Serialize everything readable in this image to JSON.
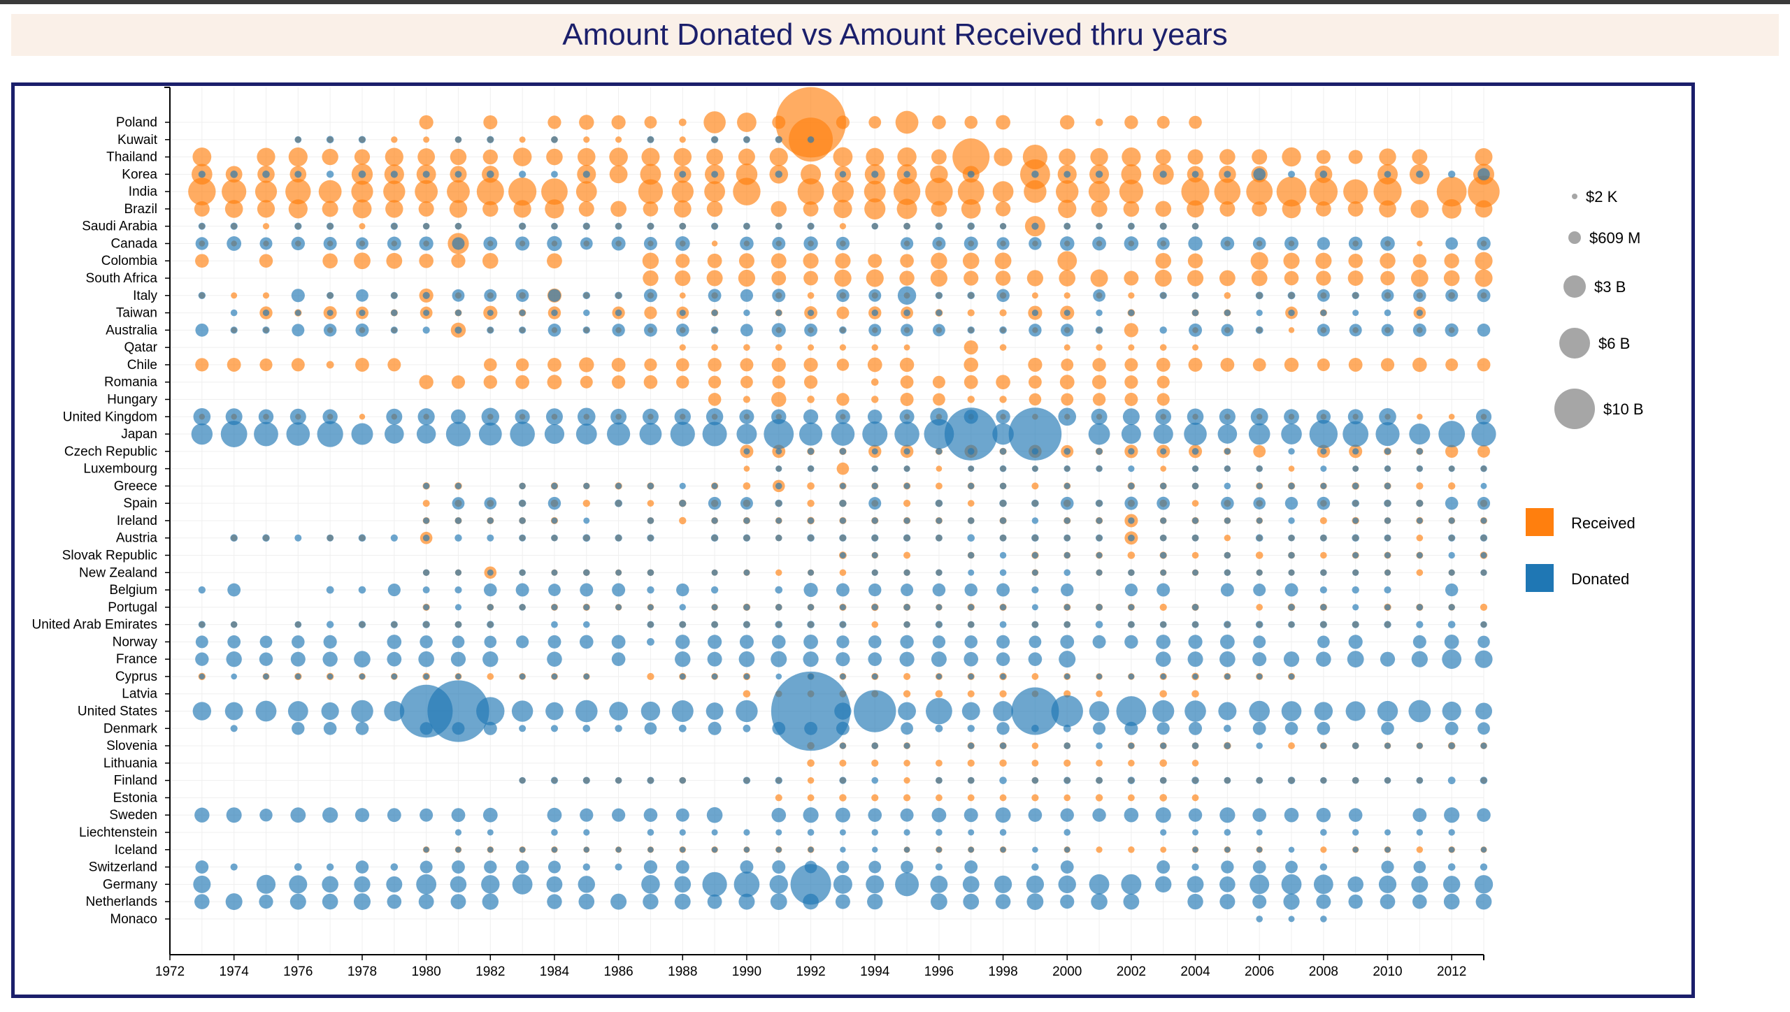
{
  "title": "Amount Donated vs Amount Received thru years",
  "chart_data": {
    "type": "scatter",
    "subtype": "bubble",
    "title": "Amount Donated vs Amount Received thru years",
    "xlabel": "",
    "ylabel": "",
    "xlim": [
      1972,
      2013
    ],
    "x_ticks": [
      1972,
      1974,
      1976,
      1978,
      1980,
      1982,
      1984,
      1986,
      1988,
      1990,
      1992,
      1994,
      1996,
      1998,
      2000,
      2002,
      2004,
      2006,
      2008,
      2010,
      2012
    ],
    "countries": [
      "Poland",
      "Kuwait",
      "Thailand",
      "Korea",
      "India",
      "Brazil",
      "Saudi Arabia",
      "Canada",
      "Colombia",
      "South Africa",
      "Italy",
      "Taiwan",
      "Australia",
      "Qatar",
      "Chile",
      "Romania",
      "Hungary",
      "United Kingdom",
      "Japan",
      "Czech Republic",
      "Luxembourg",
      "Greece",
      "Spain",
      "Ireland",
      "Austria",
      "Slovak Republic",
      "New Zealand",
      "Belgium",
      "Portugal",
      "United Arab Emirates",
      "Norway",
      "France",
      "Cyprus",
      "Latvia",
      "United States",
      "Denmark",
      "Slovenia",
      "Lithuania",
      "Finland",
      "Estonia",
      "Sweden",
      "Liechtenstein",
      "Iceland",
      "Switzerland",
      "Germany",
      "Netherlands",
      "Monaco"
    ],
    "size_legend": [
      {
        "label": "$2 K",
        "value_usd": 2000
      },
      {
        "label": "$609 M",
        "value_usd": 609000000
      },
      {
        "label": "$3 B",
        "value_usd": 3000000000
      },
      {
        "label": "$6 B",
        "value_usd": 6000000000
      },
      {
        "label": "$10 B",
        "value_usd": 10000000000
      }
    ],
    "legend_position": "right",
    "series": [
      {
        "name": "Received",
        "color": "#ff7f0e",
        "points": [
          [
            "Poland",
            1985,
            0.35
          ],
          [
            "Poland",
            1989,
            0.75
          ],
          [
            "Poland",
            1990,
            0.6
          ],
          [
            "Poland",
            1992,
            3.5
          ],
          [
            "Poland",
            1995,
            0.8
          ],
          [
            "Poland",
            1991,
            0.25
          ],
          [
            "Kuwait",
            1992,
            2.0
          ],
          [
            "Thailand",
            1990,
            0.45
          ],
          [
            "Thailand",
            1993,
            0.6
          ],
          [
            "Thailand",
            1997,
            1.6
          ],
          [
            "Thailand",
            1998,
            0.55
          ],
          [
            "Thailand",
            1999,
            0.9
          ],
          [
            "Thailand",
            2000,
            0.45
          ],
          [
            "Thailand",
            2008,
            0.3
          ],
          [
            "Thailand",
            2009,
            0.3
          ],
          [
            "Korea",
            1980,
            0.6
          ],
          [
            "Korea",
            1981,
            0.45
          ],
          [
            "Korea",
            1999,
            1.2
          ],
          [
            "Korea",
            1997,
            0.45
          ],
          [
            "India",
            1974,
            0.9
          ],
          [
            "India",
            1977,
            0.8
          ],
          [
            "India",
            1980,
            0.8
          ],
          [
            "India",
            1981,
            0.8
          ],
          [
            "India",
            1984,
            1.0
          ],
          [
            "India",
            1987,
            0.9
          ],
          [
            "India",
            1992,
            1.0
          ],
          [
            "India",
            1997,
            1.0
          ],
          [
            "India",
            2006,
            1.0
          ],
          [
            "India",
            2007,
            1.2
          ],
          [
            "India",
            2008,
            1.1
          ],
          [
            "India",
            2012,
            1.2
          ],
          [
            "India",
            2013,
            1.3
          ],
          [
            "Brazil",
            1994,
            0.7
          ],
          [
            "Brazil",
            1995,
            0.65
          ],
          [
            "Brazil",
            1997,
            0.6
          ],
          [
            "Brazil",
            2012,
            0.6
          ],
          [
            "Saudi Arabia",
            1999,
            0.65
          ],
          [
            "Canada",
            1981,
            0.7
          ],
          [
            "Colombia",
            1982,
            0.4
          ],
          [
            "Colombia",
            2000,
            0.6
          ],
          [
            "Colombia",
            2006,
            0.5
          ],
          [
            "Colombia",
            2013,
            0.5
          ],
          [
            "South Africa",
            2013,
            0.5
          ],
          [
            "Italy",
            1980,
            0.3
          ],
          [
            "Italy",
            1984,
            0.3
          ],
          [
            "Taiwan",
            1982,
            0.3
          ],
          [
            "Taiwan",
            2000,
            0.3
          ],
          [
            "Taiwan",
            1999,
            0.3
          ],
          [
            "Australia",
            1981,
            0.35
          ],
          [
            "Australia",
            2002,
            0.3
          ],
          [
            "Qatar",
            1997,
            0.3
          ],
          [
            "Chile",
            1985,
            0.35
          ],
          [
            "Chile",
            1991,
            0.3
          ],
          [
            "Chile",
            1992,
            0.3
          ],
          [
            "Chile",
            2013,
            0.25
          ],
          [
            "Romania",
            2001,
            0.3
          ],
          [
            "Hungary",
            1991,
            0.35
          ],
          [
            "Luxembourg",
            1993,
            0.2
          ],
          [
            "Greece",
            1991,
            0.2
          ],
          [
            "Ireland",
            2002,
            0.25
          ],
          [
            "Austria",
            2002,
            0.25
          ],
          [
            "Austria",
            1980,
            0.2
          ],
          [
            "New Zealand",
            1982,
            0.2
          ],
          [
            "Cyprus",
            1992,
            0.15
          ]
        ]
      },
      {
        "name": "Donated",
        "color": "#1f77b4",
        "points": [
          [
            "United States",
            1973,
            0.55
          ],
          [
            "United States",
            1980,
            2.5
          ],
          [
            "United States",
            1981,
            3.0
          ],
          [
            "United States",
            1982,
            1.1
          ],
          [
            "United States",
            1985,
            0.75
          ],
          [
            "United States",
            1992,
            4.0
          ],
          [
            "United States",
            1994,
            1.9
          ],
          [
            "United States",
            1996,
            1.0
          ],
          [
            "United States",
            1999,
            2.2
          ],
          [
            "United States",
            2000,
            1.3
          ],
          [
            "United States",
            2002,
            1.2
          ],
          [
            "United States",
            2008,
            0.55
          ],
          [
            "United States",
            2013,
            0.45
          ],
          [
            "Japan",
            1974,
            1.0
          ],
          [
            "Japan",
            1981,
            0.9
          ],
          [
            "Japan",
            1988,
            0.9
          ],
          [
            "Japan",
            1991,
            1.2
          ],
          [
            "Japan",
            1996,
            1.2
          ],
          [
            "Japan",
            1997,
            2.5
          ],
          [
            "Japan",
            1999,
            2.5
          ],
          [
            "Japan",
            2008,
            1.1
          ],
          [
            "Japan",
            2012,
            1.0
          ],
          [
            "Japan",
            2013,
            0.9
          ],
          [
            "Germany",
            1989,
            0.9
          ],
          [
            "Germany",
            1990,
            0.95
          ],
          [
            "Germany",
            1992,
            1.8
          ],
          [
            "Germany",
            1995,
            0.85
          ],
          [
            "Germany",
            2013,
            0.55
          ],
          [
            "France",
            2012,
            0.6
          ],
          [
            "France",
            2013,
            0.5
          ],
          [
            "United Kingdom",
            1974,
            0.45
          ],
          [
            "United Kingdom",
            1977,
            0.35
          ],
          [
            "United Kingdom",
            1997,
            0.3
          ],
          [
            "Italy",
            1995,
            0.55
          ],
          [
            "Sweden",
            1978,
            0.3
          ],
          [
            "Sweden",
            1989,
            0.4
          ],
          [
            "Netherlands",
            2000,
            0.3
          ],
          [
            "Canada",
            1984,
            0.35
          ],
          [
            "Australia",
            1991,
            0.3
          ],
          [
            "Belgium",
            1992,
            0.3
          ],
          [
            "Korea",
            2006,
            0.2
          ],
          [
            "Korea",
            2013,
            0.2
          ]
        ]
      }
    ]
  },
  "legend": {
    "received_label": "Received",
    "donated_label": "Donated",
    "received_color": "#ff7f0e",
    "donated_color": "#1f77b4"
  }
}
